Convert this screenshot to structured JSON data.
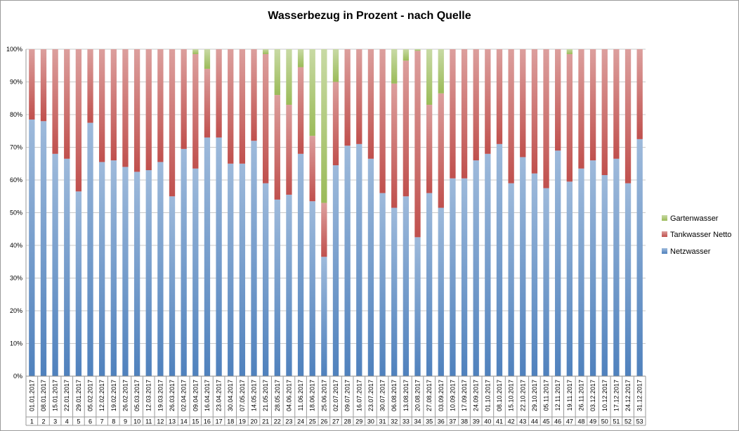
{
  "chart_data": {
    "type": "bar",
    "stacked": true,
    "normalized": true,
    "title": "Wasserbezug in Prozent - nach Quelle",
    "xlabel": "",
    "ylabel": "",
    "ylim": [
      0,
      100
    ],
    "yticks": [
      "0%",
      "10%",
      "20%",
      "30%",
      "40%",
      "50%",
      "60%",
      "70%",
      "80%",
      "90%",
      "100%"
    ],
    "grid": true,
    "legend_position": "right",
    "dates": [
      "01.01.2017",
      "08.01.2017",
      "15.01.2017",
      "22.01.2017",
      "29.01.2017",
      "05.02.2017",
      "12.02.2017",
      "19.02.2017",
      "26.02.2017",
      "05.03.2017",
      "12.03.2017",
      "19.03.2017",
      "26.03.2017",
      "02.04.2017",
      "09.04.2017",
      "16.04.2017",
      "23.04.2017",
      "30.04.2017",
      "07.05.2017",
      "14.05.2017",
      "21.05.2017",
      "28.05.2017",
      "04.06.2017",
      "11.06.2017",
      "18.06.2017",
      "25.06.2017",
      "02.07.2017",
      "09.07.2017",
      "16.07.2017",
      "23.07.2017",
      "30.07.2017",
      "06.08.2017",
      "13.08.2017",
      "20.08.2017",
      "27.08.2017",
      "03.09.2017",
      "10.09.2017",
      "17.09.2017",
      "24.09.2017",
      "01.10.2017",
      "08.10.2017",
      "15.10.2017",
      "22.10.2017",
      "29.10.2017",
      "05.11.2017",
      "12.11.2017",
      "19.11.2017",
      "26.11.2017",
      "03.12.2017",
      "10.12.2017",
      "17.12.2017",
      "24.12.2017",
      "31.12.2017"
    ],
    "weeks": [
      "1",
      "2",
      "3",
      "4",
      "5",
      "6",
      "7",
      "8",
      "9",
      "10",
      "11",
      "12",
      "13",
      "14",
      "15",
      "16",
      "17",
      "18",
      "19",
      "20",
      "21",
      "22",
      "23",
      "24",
      "25",
      "26",
      "27",
      "28",
      "29",
      "30",
      "31",
      "32",
      "33",
      "34",
      "35",
      "36",
      "37",
      "38",
      "39",
      "40",
      "41",
      "42",
      "43",
      "44",
      "45",
      "46",
      "47",
      "48",
      "49",
      "50",
      "51",
      "52",
      "53"
    ],
    "series": [
      {
        "name": "Netzwasser",
        "color": "#4f81bd",
        "values": [
          78.5,
          78,
          68,
          66.5,
          56.5,
          77.5,
          65.5,
          66,
          64,
          62.5,
          63,
          65.5,
          55,
          69.5,
          63.5,
          73,
          73,
          65,
          65,
          72,
          59,
          54,
          55.5,
          68,
          53.5,
          36.5,
          64.5,
          70.5,
          71,
          66.5,
          56,
          51.5,
          55,
          42.5,
          56,
          51.5,
          60.5,
          60.5,
          66,
          68,
          71,
          59,
          67,
          62,
          57.5,
          69,
          59.5,
          63.5,
          66,
          61.5,
          66.5,
          59,
          72.5
        ]
      },
      {
        "name": "Tankwasser Netto",
        "color": "#c0504d",
        "values": [
          21.5,
          22,
          32,
          33.5,
          43.5,
          22.5,
          34.5,
          34,
          36,
          37.5,
          37,
          34.5,
          45,
          30.5,
          35,
          21,
          27,
          35,
          35,
          28,
          39.5,
          32,
          27.5,
          26.5,
          20,
          16.5,
          25.5,
          29.5,
          29,
          33.5,
          44,
          38,
          41.5,
          57,
          27,
          35,
          39.5,
          39.5,
          34,
          32,
          29,
          41,
          33,
          38,
          42.5,
          31,
          39,
          36.5,
          34,
          38.5,
          33.5,
          41,
          27.5
        ]
      },
      {
        "name": "Gartenwasser",
        "color": "#9bbb59",
        "values": [
          0,
          0,
          0,
          0,
          0,
          0,
          0,
          0,
          0,
          0,
          0,
          0,
          0,
          0,
          1.5,
          6,
          0,
          0,
          0,
          0,
          1.5,
          14,
          17,
          5.5,
          26.5,
          47,
          10,
          0,
          0,
          0,
          0,
          10.5,
          3.5,
          0.5,
          17,
          13.5,
          0,
          0,
          0,
          0,
          0,
          0,
          0,
          0,
          0,
          0,
          1.5,
          0,
          0,
          0,
          0,
          0,
          0
        ]
      }
    ],
    "legend": [
      {
        "name": "Gartenwasser",
        "color": "#9bbb59"
      },
      {
        "name": "Tankwasser Netto",
        "color": "#c0504d"
      },
      {
        "name": "Netzwasser",
        "color": "#4f81bd"
      }
    ]
  }
}
